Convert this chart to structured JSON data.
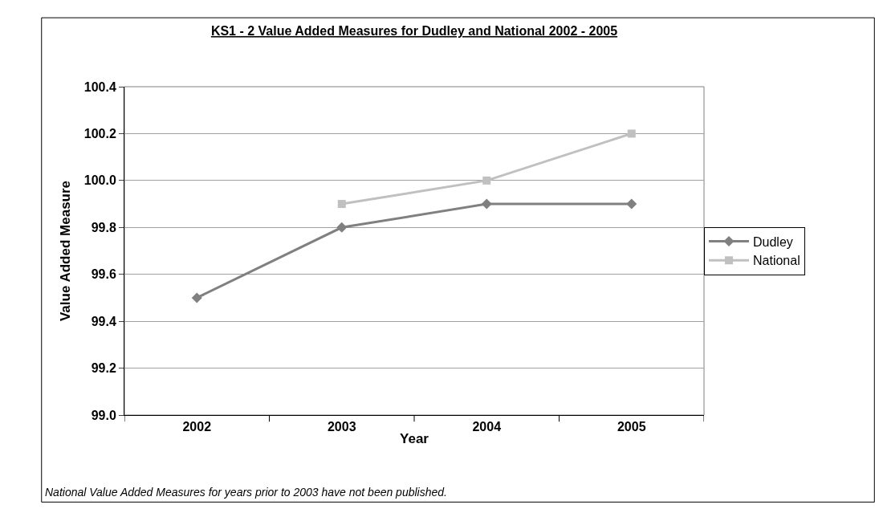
{
  "chart_data": {
    "type": "line",
    "title": "KS1 - 2 Value Added Measures for Dudley and National 2002 - 2005",
    "xlabel": "Year",
    "ylabel": "Value Added Measure",
    "categories": [
      "2002",
      "2003",
      "2004",
      "2005"
    ],
    "series": [
      {
        "name": "Dudley",
        "color": "#808080",
        "marker": "diamond",
        "values": [
          99.5,
          99.8,
          99.9,
          99.9
        ]
      },
      {
        "name": "National",
        "color": "#c0c0c0",
        "marker": "square",
        "values": [
          null,
          99.9,
          100.0,
          100.2
        ]
      }
    ],
    "ylim": [
      99.0,
      100.4
    ],
    "yticks": [
      {
        "value": 99.0,
        "label": "99.0"
      },
      {
        "value": 99.2,
        "label": "99.2"
      },
      {
        "value": 99.4,
        "label": "99.4"
      },
      {
        "value": 99.6,
        "label": "99.6"
      },
      {
        "value": 99.8,
        "label": "99.8"
      },
      {
        "value": 100.0,
        "label": "100.0"
      },
      {
        "value": 100.2,
        "label": "100.2"
      },
      {
        "value": 100.4,
        "label": "100.4"
      }
    ],
    "grid": "y",
    "legend": "right",
    "line_style": "solid",
    "annotations": [
      "National Value Added Measures for years prior to 2003 have not been published."
    ]
  }
}
